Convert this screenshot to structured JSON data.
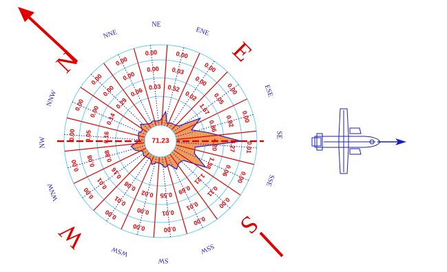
{
  "colors": {
    "grid_red": "#e00000",
    "ring_cyan": "#66ccee",
    "dotted_blue": "#1a1acc",
    "rose_fill": "#f2a060",
    "rose_outline": "#1a1acc"
  },
  "calm_value": "71.23",
  "directions": [
    "NE",
    "ENE",
    "ESE",
    "SE",
    "SSE",
    "SSW",
    "SW",
    "WSW",
    "WNW",
    "NW",
    "NNW",
    "NNE"
  ],
  "cardinals": [
    "N",
    "E",
    "S",
    "W"
  ],
  "sectors": [
    {
      "values": [
        "0.00",
        "0.03",
        "0.52"
      ]
    },
    {
      "values": [
        "0.00",
        "0.00",
        "0.02"
      ]
    },
    {
      "values": [
        "0.00",
        "0.05",
        "1.67"
      ]
    },
    {
      "values": [
        "0.00",
        "0.92",
        "0.86"
      ]
    },
    {
      "values": [
        "0.01",
        "6.27",
        "4.20"
      ]
    },
    {
      "values": [
        "0.00",
        "0.06",
        "1.38"
      ]
    },
    {
      "values": [
        "0.00",
        "0.11",
        "1.21"
      ]
    },
    {
      "values": [
        "0.00",
        "0.01",
        "0.69"
      ]
    },
    {
      "values": [
        "0.00",
        "0.01",
        "0.55"
      ]
    },
    {
      "values": [
        "0.00",
        "0.00",
        "0.02"
      ]
    },
    {
      "values": [
        "0.00",
        "0.01",
        "0.08"
      ]
    },
    {
      "values": [
        "0.00",
        "0.01",
        "0.16"
      ]
    },
    {
      "values": [
        "0.00",
        "0.08",
        "0.88"
      ]
    },
    {
      "values": [
        "0.00",
        "0.05",
        "0.16"
      ]
    },
    {
      "values": [
        "0.00",
        "0.00",
        "0.14"
      ]
    },
    {
      "values": [
        "0.00",
        "0.00",
        "0.29"
      ]
    },
    {
      "values": [
        "0.00",
        "0.00",
        "0.06"
      ]
    },
    {
      "values": [
        "0.00",
        "0.00",
        "0.03"
      ]
    }
  ],
  "petals": [
    0.06,
    0.2,
    0.03,
    0.06,
    0.07,
    0.1,
    0.45,
    0.25,
    0.5,
    1.0,
    0.28,
    0.3,
    0.55,
    0.2,
    0.18,
    0.24,
    0.12,
    0.15,
    0.08,
    0.07,
    0.12,
    0.05,
    0.06,
    0.08,
    0.05,
    0.15,
    0.2,
    0.07,
    0.08,
    0.1,
    0.06,
    0.14,
    0.08,
    0.05,
    0.07,
    0.05
  ]
}
